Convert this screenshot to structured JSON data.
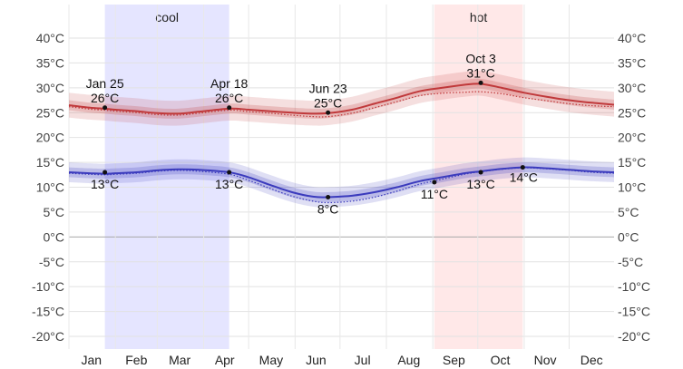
{
  "chart_data": {
    "type": "line",
    "title": "",
    "xlabel": "",
    "ylabel": "",
    "ylim": [
      -23,
      42
    ],
    "yticks": [
      40,
      35,
      30,
      25,
      20,
      15,
      10,
      5,
      0,
      -5,
      -10,
      -15,
      -20
    ],
    "ytick_labels": [
      "40°C",
      "35°C",
      "30°C",
      "25°C",
      "20°C",
      "15°C",
      "10°C",
      "5°C",
      "0°C",
      "-5°C",
      "-10°C",
      "-15°C",
      "-20°C"
    ],
    "months": [
      "Jan",
      "Feb",
      "Mar",
      "Apr",
      "May",
      "Jun",
      "Jul",
      "Aug",
      "Sep",
      "Oct",
      "Nov",
      "Dec"
    ],
    "grid": true,
    "seasons": [
      {
        "label": "cool",
        "start_day": 25,
        "end_day": 108,
        "color": "#e5e5ff"
      },
      {
        "label": "hot",
        "start_day": 245,
        "end_day": 304,
        "color": "#ffe8e8"
      }
    ],
    "series": [
      {
        "role": "daily-high",
        "color": "#c0393b",
        "x": [
          1,
          15,
          25,
          32,
          46,
          60,
          74,
          88,
          108,
          121,
          135,
          150,
          164,
          174,
          190,
          205,
          220,
          235,
          250,
          265,
          276,
          290,
          305,
          320,
          335,
          350,
          365
        ],
        "mean": [
          26.5,
          26,
          25.8,
          25.6,
          25.3,
          24.9,
          24.8,
          25.2,
          25.8,
          25.6,
          25.3,
          25.0,
          24.8,
          24.9,
          25.6,
          26.8,
          28.0,
          29.3,
          30.0,
          30.6,
          30.8,
          30.0,
          29.0,
          28.2,
          27.5,
          27.0,
          26.6
        ],
        "p25": [
          25.5,
          25.0,
          24.8,
          24.6,
          24.3,
          23.9,
          23.8,
          24.2,
          24.8,
          24.6,
          24.3,
          24.0,
          23.8,
          23.9,
          24.6,
          25.8,
          27.0,
          28.3,
          29.0,
          29.6,
          29.8,
          29.0,
          28.0,
          27.2,
          26.5,
          26.0,
          25.6
        ],
        "p75": [
          27.5,
          27.0,
          26.8,
          26.6,
          26.3,
          25.9,
          25.8,
          26.2,
          26.8,
          26.6,
          26.3,
          26.0,
          25.8,
          25.9,
          26.6,
          27.8,
          29.0,
          30.3,
          31.0,
          31.6,
          31.8,
          31.0,
          30.0,
          29.2,
          28.5,
          28.0,
          27.6
        ],
        "p10": [
          24.0,
          23.6,
          23.4,
          23.2,
          22.9,
          22.5,
          22.4,
          22.8,
          23.4,
          23.2,
          22.9,
          22.6,
          22.4,
          22.5,
          23.2,
          24.4,
          25.6,
          26.9,
          27.6,
          28.2,
          28.4,
          27.6,
          26.6,
          25.8,
          25.1,
          24.6,
          24.2
        ],
        "p90": [
          29.0,
          28.6,
          28.4,
          28.2,
          27.9,
          27.5,
          27.4,
          27.8,
          28.4,
          28.2,
          27.9,
          27.6,
          27.4,
          27.5,
          28.2,
          29.4,
          30.6,
          31.9,
          32.6,
          33.2,
          33.4,
          32.6,
          31.6,
          30.8,
          30.1,
          29.6,
          29.2
        ],
        "avg_dotted": [
          26.2,
          25.7,
          25.5,
          25.3,
          25.0,
          24.6,
          24.5,
          24.9,
          25.5,
          25.2,
          24.9,
          24.5,
          24.2,
          24.2,
          24.9,
          26.0,
          27.2,
          28.4,
          28.9,
          29.1,
          29.2,
          28.8,
          28.0,
          27.4,
          26.8,
          26.4,
          26.2
        ]
      },
      {
        "role": "daily-low",
        "color": "#3b3bbd",
        "x": [
          1,
          15,
          25,
          32,
          46,
          60,
          74,
          88,
          108,
          121,
          135,
          150,
          164,
          174,
          190,
          205,
          220,
          235,
          250,
          265,
          276,
          290,
          305,
          320,
          335,
          350,
          365
        ],
        "mean": [
          13.0,
          12.8,
          12.7,
          12.8,
          13.0,
          13.4,
          13.6,
          13.5,
          13.0,
          12.0,
          10.5,
          9.0,
          8.1,
          8.0,
          8.3,
          9.0,
          10.0,
          11.2,
          12.0,
          12.8,
          13.2,
          13.7,
          14.0,
          13.8,
          13.5,
          13.2,
          13.0
        ],
        "p25": [
          12.0,
          11.8,
          11.7,
          11.8,
          12.0,
          12.4,
          12.6,
          12.5,
          12.0,
          11.0,
          9.5,
          8.0,
          7.1,
          7.0,
          7.3,
          8.0,
          9.0,
          10.2,
          11.0,
          11.8,
          12.2,
          12.7,
          13.0,
          12.8,
          12.5,
          12.2,
          12.0
        ],
        "p75": [
          14.0,
          13.8,
          13.7,
          13.8,
          14.0,
          14.4,
          14.6,
          14.5,
          14.0,
          13.0,
          11.5,
          10.0,
          9.1,
          9.0,
          9.3,
          10.0,
          11.0,
          12.2,
          13.0,
          13.8,
          14.2,
          14.7,
          15.0,
          14.8,
          14.5,
          14.2,
          14.0
        ],
        "p10": [
          11.0,
          10.8,
          10.7,
          10.8,
          11.0,
          11.4,
          11.6,
          11.5,
          11.0,
          10.0,
          8.5,
          7.0,
          6.1,
          6.0,
          6.3,
          7.0,
          8.0,
          9.2,
          10.0,
          10.8,
          11.2,
          11.7,
          12.0,
          11.8,
          11.5,
          11.2,
          11.0
        ],
        "p90": [
          15.0,
          14.8,
          14.7,
          14.8,
          15.0,
          15.4,
          15.6,
          15.5,
          15.0,
          14.0,
          12.5,
          11.0,
          10.1,
          10.0,
          10.3,
          11.0,
          12.0,
          13.2,
          14.0,
          14.8,
          15.2,
          15.7,
          16.0,
          15.8,
          15.5,
          15.2,
          15.0
        ],
        "avg_dotted": [
          12.8,
          12.6,
          12.5,
          12.6,
          12.8,
          13.2,
          13.4,
          13.2,
          12.6,
          11.4,
          9.8,
          8.2,
          7.2,
          6.9,
          7.2,
          8.0,
          9.2,
          10.6,
          11.6,
          12.6,
          13.1,
          13.6,
          13.9,
          13.7,
          13.4,
          13.0,
          12.8
        ]
      }
    ],
    "annotations": [
      {
        "day": 25,
        "value": 26,
        "lines": [
          "Jan 25",
          "26°C"
        ],
        "pos": "above"
      },
      {
        "day": 108,
        "value": 26,
        "lines": [
          "Apr 18",
          "26°C"
        ],
        "pos": "above"
      },
      {
        "day": 174,
        "value": 25,
        "lines": [
          "Jun 23",
          "25°C"
        ],
        "pos": "above"
      },
      {
        "day": 276,
        "value": 31,
        "lines": [
          "Oct 3",
          "31°C"
        ],
        "pos": "above"
      },
      {
        "day": 25,
        "value": 13,
        "lines": [
          "13°C"
        ],
        "pos": "below"
      },
      {
        "day": 108,
        "value": 13,
        "lines": [
          "13°C"
        ],
        "pos": "below"
      },
      {
        "day": 174,
        "value": 8,
        "lines": [
          "8°C"
        ],
        "pos": "below"
      },
      {
        "day": 245,
        "value": 11,
        "lines": [
          "11°C"
        ],
        "pos": "below"
      },
      {
        "day": 276,
        "value": 13,
        "lines": [
          "13°C"
        ],
        "pos": "below"
      },
      {
        "day": 304,
        "value": 14,
        "lines": [
          "14°C"
        ],
        "pos": "right"
      }
    ]
  }
}
